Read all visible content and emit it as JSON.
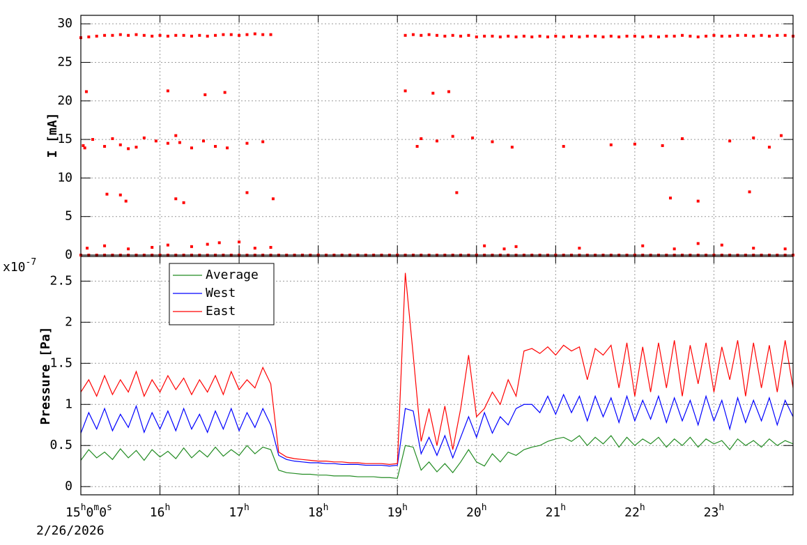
{
  "chart_data": [
    {
      "type": "scatter",
      "ylabel": "I [mA]",
      "xlim": [
        15,
        24
      ],
      "ylim": [
        0,
        31.1
      ],
      "yticks": [
        0,
        5,
        10,
        15,
        20,
        25,
        30
      ],
      "xticks": [
        15,
        16,
        17,
        18,
        19,
        20,
        21,
        22,
        23
      ],
      "grid": true,
      "x": [
        15.0,
        15.1,
        15.2,
        15.3,
        15.4,
        15.5,
        15.6,
        15.7,
        15.8,
        15.9,
        16.0,
        16.1,
        16.2,
        16.3,
        16.4,
        16.5,
        16.6,
        16.7,
        16.8,
        16.9,
        17.0,
        17.1,
        17.2,
        17.3,
        17.4,
        17.5,
        17.6,
        17.7,
        17.8,
        17.9,
        18.0,
        18.1,
        18.2,
        18.3,
        18.4,
        18.5,
        18.6,
        18.7,
        18.8,
        18.9,
        19.0,
        19.1,
        19.2,
        19.3,
        19.4,
        19.5,
        19.6,
        19.7,
        19.8,
        19.9,
        20.0,
        20.1,
        20.2,
        20.3,
        20.4,
        20.5,
        20.6,
        20.7,
        20.8,
        20.9,
        21.0,
        21.1,
        21.2,
        21.3,
        21.4,
        21.5,
        21.6,
        21.7,
        21.8,
        21.9,
        22.0,
        22.1,
        22.2,
        22.3,
        22.4,
        22.5,
        22.6,
        22.7,
        22.8,
        22.9,
        23.0,
        23.1,
        23.2,
        23.3,
        23.4,
        23.5,
        23.6,
        23.7,
        23.8,
        23.9,
        24.0
      ],
      "series": [
        {
          "color": "#ff0000",
          "values": [
            28.2,
            28.3,
            28.4,
            28.5,
            28.5,
            28.6,
            28.5,
            28.6,
            28.5,
            28.4,
            28.5,
            28.4,
            28.5,
            28.5,
            28.4,
            28.5,
            28.4,
            28.5,
            28.6,
            28.6,
            28.5,
            28.6,
            28.7,
            28.6,
            28.6,
            null,
            null,
            null,
            null,
            null,
            null,
            null,
            null,
            null,
            null,
            null,
            null,
            null,
            null,
            null,
            null,
            28.5,
            28.6,
            28.5,
            28.6,
            28.5,
            28.4,
            28.5,
            28.4,
            28.5,
            28.3,
            28.4,
            28.4,
            28.3,
            28.4,
            28.3,
            28.4,
            28.3,
            28.4,
            28.3,
            28.4,
            28.3,
            28.4,
            28.3,
            28.4,
            28.4,
            28.3,
            28.4,
            28.3,
            28.4,
            28.4,
            28.3,
            28.4,
            28.3,
            28.4,
            28.4,
            28.5,
            28.4,
            28.3,
            28.4,
            28.5,
            28.4,
            28.4,
            28.5,
            28.5,
            28.4,
            28.5,
            28.4,
            28.5,
            28.5,
            28.4
          ]
        },
        {
          "color": "#ff0000",
          "values": [
            0,
            0,
            0,
            0,
            0,
            0,
            0,
            0,
            0,
            0,
            0,
            0,
            0,
            0,
            0,
            0,
            0,
            0,
            0,
            0,
            0,
            0,
            0,
            0,
            0,
            0,
            0,
            0,
            0,
            0,
            0,
            0,
            0,
            0,
            0,
            0,
            0,
            0,
            0,
            0,
            0,
            0,
            0,
            0,
            0,
            0,
            0,
            0,
            0,
            0,
            0,
            0,
            0,
            0,
            0,
            0,
            0,
            0,
            0,
            0,
            0,
            0,
            0,
            0,
            0,
            0,
            0,
            0,
            0,
            0,
            0,
            0,
            0,
            0,
            0,
            0,
            0,
            0,
            0,
            0,
            0,
            0,
            0,
            0,
            0,
            0,
            0,
            0,
            0,
            0,
            0
          ]
        },
        {
          "color": "#ff0000",
          "x": [
            15.03,
            15.05,
            15.15,
            15.3,
            15.4,
            15.5,
            15.6,
            15.7,
            15.8,
            15.95,
            16.1,
            16.2,
            16.25,
            16.4,
            16.55,
            16.7,
            16.85,
            17.1,
            17.3,
            19.25,
            19.3,
            19.5,
            19.7,
            19.95,
            20.2,
            20.45,
            21.1,
            21.7,
            22.0,
            22.35,
            22.6,
            23.2,
            23.5,
            23.7,
            23.85,
            15.07,
            16.1,
            16.57,
            16.82,
            19.1,
            19.45,
            19.65,
            15.33,
            15.5,
            15.57,
            16.2,
            16.3,
            17.1,
            17.43,
            19.75,
            22.45,
            22.8,
            23.45,
            15.08,
            15.3,
            15.6,
            15.9,
            16.1,
            16.4,
            16.6,
            16.75,
            17.0,
            17.2,
            17.4,
            20.1,
            20.35,
            20.5,
            21.3,
            22.1,
            22.5,
            22.8,
            23.1,
            23.5,
            23.9
          ],
          "values": [
            14.2,
            13.9,
            15.0,
            14.1,
            15.1,
            14.3,
            13.8,
            14.0,
            15.2,
            14.8,
            14.5,
            15.5,
            14.6,
            13.9,
            14.8,
            14.1,
            13.9,
            14.5,
            14.7,
            14.1,
            15.1,
            14.8,
            15.4,
            15.2,
            14.7,
            14.0,
            14.1,
            14.3,
            14.4,
            14.2,
            15.1,
            14.8,
            15.2,
            14.0,
            15.5,
            21.2,
            21.3,
            20.8,
            21.1,
            21.3,
            21.0,
            21.2,
            7.9,
            7.8,
            7.0,
            7.3,
            6.8,
            8.1,
            7.3,
            8.1,
            7.4,
            7.0,
            8.2,
            0.9,
            1.2,
            0.8,
            1.0,
            1.3,
            1.1,
            1.4,
            1.6,
            1.7,
            0.9,
            1.0,
            1.2,
            0.8,
            1.1,
            0.9,
            1.2,
            0.8,
            1.5,
            1.3,
            0.9,
            0.8
          ]
        }
      ]
    },
    {
      "type": "line",
      "ylabel": "Pressure [Pa]",
      "y_multiplier": "x10-7",
      "date": "2/26/2026",
      "xlim": [
        15,
        24
      ],
      "ylim": [
        -0.1,
        2.8
      ],
      "yticks": [
        0,
        0.5,
        1,
        1.5,
        2,
        2.5
      ],
      "xticks": [
        {
          "value": 15,
          "label": "15h0m0s"
        },
        {
          "value": 16,
          "label": "16h"
        },
        {
          "value": 17,
          "label": "17h"
        },
        {
          "value": 18,
          "label": "18h"
        },
        {
          "value": 19,
          "label": "19h"
        },
        {
          "value": 20,
          "label": "20h"
        },
        {
          "value": 21,
          "label": "21h"
        },
        {
          "value": 22,
          "label": "22h"
        },
        {
          "value": 23,
          "label": "23h"
        }
      ],
      "grid": true,
      "legend": "upper left",
      "x": [
        15.0,
        15.1,
        15.2,
        15.3,
        15.4,
        15.5,
        15.6,
        15.7,
        15.8,
        15.9,
        16.0,
        16.1,
        16.2,
        16.3,
        16.4,
        16.5,
        16.6,
        16.7,
        16.8,
        16.9,
        17.0,
        17.1,
        17.2,
        17.3,
        17.4,
        17.5,
        17.6,
        17.7,
        17.8,
        17.9,
        18.0,
        18.1,
        18.2,
        18.3,
        18.4,
        18.5,
        18.6,
        18.7,
        18.8,
        18.9,
        19.0,
        19.1,
        19.2,
        19.3,
        19.4,
        19.5,
        19.6,
        19.7,
        19.8,
        19.9,
        20.0,
        20.1,
        20.2,
        20.3,
        20.4,
        20.5,
        20.6,
        20.7,
        20.8,
        20.9,
        21.0,
        21.1,
        21.2,
        21.3,
        21.4,
        21.5,
        21.6,
        21.7,
        21.8,
        21.9,
        22.0,
        22.1,
        22.2,
        22.3,
        22.4,
        22.5,
        22.6,
        22.7,
        22.8,
        22.9,
        23.0,
        23.1,
        23.2,
        23.3,
        23.4,
        23.5,
        23.6,
        23.7,
        23.8,
        23.9,
        24.0
      ],
      "series": [
        {
          "name": "Average",
          "color": "#228b22",
          "values": [
            0.32,
            0.45,
            0.35,
            0.42,
            0.33,
            0.46,
            0.35,
            0.44,
            0.32,
            0.45,
            0.36,
            0.43,
            0.34,
            0.47,
            0.35,
            0.44,
            0.36,
            0.48,
            0.37,
            0.45,
            0.38,
            0.5,
            0.4,
            0.48,
            0.45,
            0.2,
            0.17,
            0.16,
            0.15,
            0.15,
            0.14,
            0.14,
            0.13,
            0.13,
            0.13,
            0.12,
            0.12,
            0.12,
            0.11,
            0.11,
            0.1,
            0.5,
            0.48,
            0.2,
            0.3,
            0.18,
            0.28,
            0.17,
            0.3,
            0.45,
            0.3,
            0.25,
            0.4,
            0.3,
            0.42,
            0.38,
            0.45,
            0.48,
            0.5,
            0.55,
            0.58,
            0.6,
            0.55,
            0.62,
            0.5,
            0.6,
            0.52,
            0.62,
            0.48,
            0.6,
            0.5,
            0.58,
            0.52,
            0.6,
            0.48,
            0.58,
            0.5,
            0.6,
            0.48,
            0.58,
            0.52,
            0.56,
            0.45,
            0.58,
            0.5,
            0.56,
            0.48,
            0.58,
            0.5,
            0.56,
            0.52
          ]
        },
        {
          "name": "West",
          "color": "#0000ff",
          "values": [
            0.65,
            0.9,
            0.7,
            0.95,
            0.68,
            0.88,
            0.72,
            0.98,
            0.66,
            0.9,
            0.7,
            0.92,
            0.68,
            0.95,
            0.7,
            0.88,
            0.66,
            0.92,
            0.7,
            0.95,
            0.68,
            0.9,
            0.72,
            0.95,
            0.75,
            0.38,
            0.33,
            0.31,
            0.3,
            0.29,
            0.29,
            0.28,
            0.28,
            0.27,
            0.27,
            0.27,
            0.26,
            0.26,
            0.26,
            0.25,
            0.26,
            0.95,
            0.92,
            0.4,
            0.6,
            0.38,
            0.62,
            0.35,
            0.6,
            0.85,
            0.6,
            0.9,
            0.65,
            0.85,
            0.75,
            0.95,
            1.0,
            1.0,
            0.9,
            1.1,
            0.88,
            1.12,
            0.9,
            1.1,
            0.8,
            1.1,
            0.85,
            1.08,
            0.78,
            1.1,
            0.8,
            1.05,
            0.82,
            1.1,
            0.78,
            1.08,
            0.8,
            1.05,
            0.75,
            1.1,
            0.8,
            1.05,
            0.7,
            1.08,
            0.78,
            1.05,
            0.8,
            1.08,
            0.75,
            1.05,
            0.85
          ]
        },
        {
          "name": "East",
          "color": "#ff0000",
          "values": [
            1.15,
            1.3,
            1.1,
            1.35,
            1.12,
            1.3,
            1.15,
            1.4,
            1.1,
            1.3,
            1.15,
            1.35,
            1.18,
            1.32,
            1.12,
            1.3,
            1.15,
            1.35,
            1.12,
            1.4,
            1.18,
            1.3,
            1.2,
            1.45,
            1.25,
            0.42,
            0.36,
            0.34,
            0.33,
            0.32,
            0.31,
            0.31,
            0.3,
            0.3,
            0.29,
            0.29,
            0.28,
            0.28,
            0.28,
            0.27,
            0.28,
            2.6,
            1.6,
            0.55,
            0.95,
            0.5,
            0.98,
            0.45,
            0.95,
            1.6,
            0.85,
            0.95,
            1.15,
            1.0,
            1.3,
            1.1,
            1.65,
            1.68,
            1.62,
            1.7,
            1.6,
            1.72,
            1.65,
            1.7,
            1.3,
            1.68,
            1.6,
            1.72,
            1.2,
            1.75,
            1.1,
            1.7,
            1.15,
            1.75,
            1.2,
            1.78,
            1.1,
            1.72,
            1.25,
            1.75,
            1.15,
            1.7,
            1.3,
            1.78,
            1.1,
            1.75,
            1.2,
            1.72,
            1.15,
            1.78,
            1.2
          ]
        }
      ]
    }
  ]
}
